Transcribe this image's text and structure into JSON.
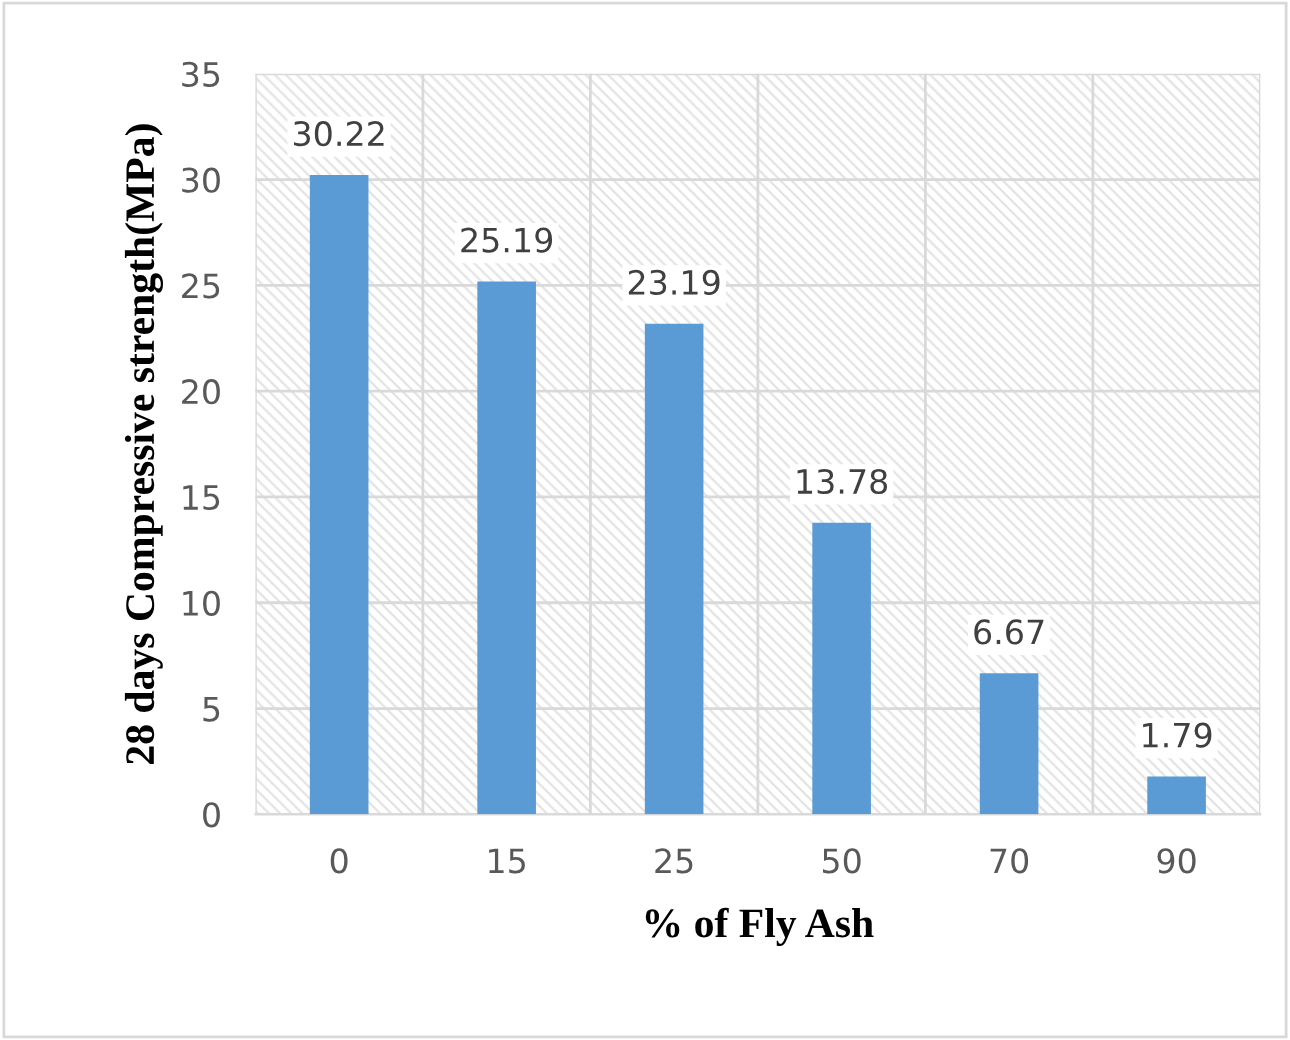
{
  "chart_data": {
    "type": "bar",
    "xlabel": "% of Fly Ash",
    "ylabel": "28 days Compressive strength(MPa)",
    "categories": [
      "0",
      "15",
      "25",
      "50",
      "70",
      "90"
    ],
    "values": [
      30.22,
      25.19,
      23.19,
      13.78,
      6.67,
      1.79
    ],
    "color": "#5b9bd5",
    "ylim": [
      0,
      35
    ],
    "yticks": [
      0,
      5,
      10,
      15,
      20,
      25,
      30,
      35
    ],
    "grid": true,
    "data_labels": true
  }
}
